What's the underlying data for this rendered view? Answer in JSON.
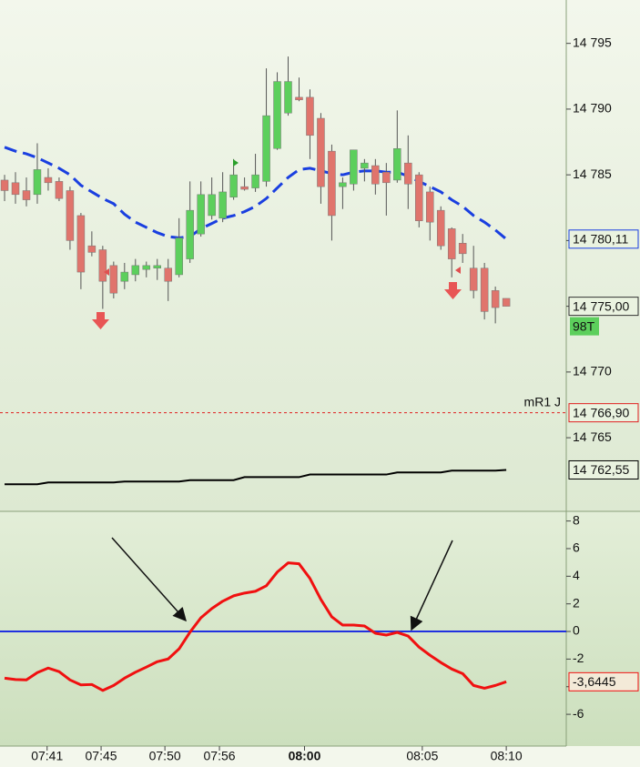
{
  "chart_data": [
    {
      "type": "candlestick",
      "xlim": [
        -0.42,
        51.5
      ],
      "ylim": [
        14759.4,
        14798.3
      ],
      "yticks": [
        {
          "value": 14795,
          "label": "14 795"
        },
        {
          "value": 14790,
          "label": "14 790"
        },
        {
          "value": 14785,
          "label": "14 785"
        },
        {
          "value": 14780,
          "label": "14 780"
        },
        {
          "value": 14775,
          "label": "14 775"
        },
        {
          "value": 14770,
          "label": "14 770"
        },
        {
          "value": 14765,
          "label": "14 765"
        }
      ],
      "open": [
        14784.6,
        14784.4,
        14783.8,
        14783.5,
        14784.8,
        14784.5,
        14783.8,
        14781.9,
        14779.6,
        14779.3,
        14778.1,
        14776.9,
        14777.4,
        14777.8,
        14777.9,
        14777.9,
        14777.4,
        14778.6,
        14780.5,
        14781.9,
        14781.7,
        14783.3,
        14784.1,
        14784.0,
        14784.5,
        14787.0,
        14789.7,
        14790.9,
        14790.9,
        14789.3,
        14786.8,
        14784.1,
        14784.3,
        14785.5,
        14785.7,
        14785.2,
        14784.6,
        14785.9,
        14785.0,
        14783.7,
        14782.3,
        14780.9,
        14779.8,
        14777.9,
        14777.9,
        14776.2,
        14775.6
      ],
      "high": [
        14785.0,
        14785.2,
        14784.8,
        14787.4,
        14785.5,
        14784.8,
        14784.1,
        14782.1,
        14780.7,
        14779.6,
        14778.4,
        14778.3,
        14778.6,
        14778.4,
        14778.6,
        14778.6,
        14781.7,
        14784.5,
        14784.5,
        14784.8,
        14785.2,
        14786.2,
        14784.8,
        14786.6,
        14793.1,
        14792.8,
        14794.0,
        14792.4,
        14791.5,
        14789.7,
        14787.3,
        14784.8,
        14786.9,
        14786.2,
        14786.2,
        14785.9,
        14789.9,
        14788.0,
        14785.2,
        14784.1,
        14782.6,
        14781.0,
        14780.5,
        14779.6,
        14778.3,
        14776.5,
        14775.6
      ],
      "low": [
        14783.0,
        14782.8,
        14782.6,
        14782.8,
        14783.8,
        14783.0,
        14779.3,
        14776.3,
        14778.8,
        14774.8,
        14775.6,
        14776.3,
        14776.9,
        14777.2,
        14777.0,
        14775.4,
        14777.2,
        14778.3,
        14780.3,
        14781.6,
        14781.4,
        14783.1,
        14783.8,
        14783.7,
        14784.1,
        14786.9,
        14789.5,
        14790.6,
        14786.2,
        14782.8,
        14780.0,
        14782.4,
        14783.8,
        14784.5,
        14783.5,
        14781.9,
        14784.4,
        14782.4,
        14781.0,
        14780.0,
        14779.3,
        14777.2,
        14778.3,
        14775.6,
        14774.0,
        14773.7,
        14775.0
      ],
      "close": [
        14783.8,
        14783.5,
        14783.1,
        14785.4,
        14784.4,
        14783.2,
        14780.0,
        14777.6,
        14779.1,
        14776.9,
        14776.0,
        14777.6,
        14778.1,
        14778.1,
        14778.1,
        14776.9,
        14780.2,
        14782.3,
        14783.5,
        14783.5,
        14783.7,
        14785.0,
        14783.9,
        14785.0,
        14789.5,
        14792.1,
        14792.1,
        14790.7,
        14788.0,
        14784.1,
        14781.9,
        14784.4,
        14786.9,
        14785.9,
        14784.3,
        14784.4,
        14787.0,
        14784.3,
        14781.5,
        14781.4,
        14779.6,
        14778.6,
        14779.0,
        14776.2,
        14774.6,
        14774.9,
        14775.0
      ],
      "up_color": "#5ccf5c",
      "down_color": "#e0746c",
      "close_label": "14 775,00",
      "bar_label": "98T",
      "lines": [
        {
          "color": "#1a3fe0",
          "dash": true,
          "value_label": "14 780,11",
          "values": [
            14787.1,
            14786.8,
            14786.6,
            14786.3,
            14785.9,
            14785.5,
            14785.0,
            14784.2,
            14783.7,
            14783.2,
            14782.8,
            14782.0,
            14781.4,
            14781.0,
            14780.6,
            14780.3,
            14780.2,
            14780.3,
            14780.9,
            14781.3,
            14781.7,
            14781.9,
            14782.2,
            14782.6,
            14783.2,
            14784.0,
            14784.8,
            14785.4,
            14785.5,
            14785.3,
            14785.1,
            14785.0,
            14785.2,
            14785.3,
            14785.3,
            14785.2,
            14785.2,
            14784.9,
            14784.5,
            14784.1,
            14783.7,
            14783.1,
            14782.6,
            14781.9,
            14781.4,
            14780.8,
            14780.11
          ]
        },
        {
          "color": "#000000",
          "dash": false,
          "value_label": "14 762,55",
          "values": [
            14761.46,
            14761.46,
            14761.46,
            14761.46,
            14761.6,
            14761.6,
            14761.6,
            14761.6,
            14761.6,
            14761.6,
            14761.6,
            14761.67,
            14761.67,
            14761.67,
            14761.67,
            14761.67,
            14761.67,
            14761.77,
            14761.77,
            14761.77,
            14761.77,
            14761.77,
            14762.0,
            14762.0,
            14762.0,
            14762.0,
            14762.0,
            14762.0,
            14762.2,
            14762.2,
            14762.2,
            14762.2,
            14762.2,
            14762.2,
            14762.2,
            14762.2,
            14762.36,
            14762.36,
            14762.36,
            14762.36,
            14762.36,
            14762.5,
            14762.5,
            14762.5,
            14762.5,
            14762.5,
            14762.55
          ]
        }
      ],
      "hline": {
        "value": 14766.9,
        "label": "14 766,90",
        "name": "mR1 J",
        "color": "#e02020"
      }
    },
    {
      "type": "line",
      "xlim": [
        -0.42,
        51.5
      ],
      "ylim": [
        -8.3,
        8.7
      ],
      "yticks": [
        8,
        6,
        4,
        2,
        0,
        -2,
        -4,
        -6
      ],
      "xticks": [
        {
          "value": 3.9,
          "label": "07:41"
        },
        {
          "value": 8.85,
          "label": "07:45"
        },
        {
          "value": 14.7,
          "label": "07:50"
        },
        {
          "value": 19.7,
          "label": "07:56"
        },
        {
          "value": 27.5,
          "label": "08:00",
          "bold": true
        },
        {
          "value": 38.3,
          "label": "08:05"
        },
        {
          "value": 46,
          "label": "08:10"
        }
      ],
      "values": [
        -3.38,
        -3.48,
        -3.51,
        -2.98,
        -2.65,
        -2.91,
        -3.51,
        -3.87,
        -3.84,
        -4.27,
        -3.91,
        -3.38,
        -2.95,
        -2.58,
        -2.19,
        -1.99,
        -1.26,
        -0.05,
        0.99,
        1.66,
        2.19,
        2.58,
        2.78,
        2.91,
        3.31,
        4.3,
        4.97,
        4.9,
        3.84,
        2.32,
        1.06,
        0.46,
        0.46,
        0.4,
        -0.13,
        -0.26,
        -0.07,
        -0.33,
        -1.13,
        -1.72,
        -2.25,
        -2.72,
        -3.05,
        -3.91,
        -4.11,
        -3.91,
        -3.6445
      ],
      "color": "#f01010",
      "value_label": "-3,6445",
      "hline": {
        "value": 0,
        "color": "#2030e0"
      }
    }
  ]
}
